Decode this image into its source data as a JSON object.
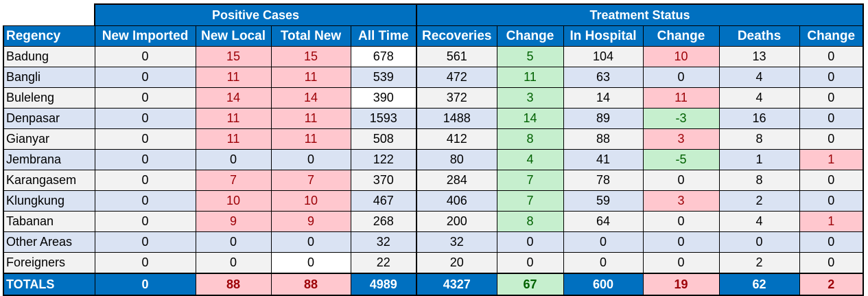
{
  "groups": {
    "positive": "Positive Cases",
    "treatment": "Treatment Status"
  },
  "columns": [
    "Regency",
    "New Imported",
    "New Local",
    "Total New",
    "All Time",
    "Recoveries",
    "Change",
    "In Hospital",
    "Change",
    "Deaths",
    "Change"
  ],
  "rows": [
    [
      "Badung",
      "0",
      "15",
      "15",
      "678",
      "561",
      "5",
      "104",
      "10",
      "13",
      "0"
    ],
    [
      "Bangli",
      "0",
      "11",
      "11",
      "539",
      "472",
      "11",
      "63",
      "0",
      "4",
      "0"
    ],
    [
      "Buleleng",
      "0",
      "14",
      "14",
      "390",
      "372",
      "3",
      "14",
      "11",
      "4",
      "0"
    ],
    [
      "Denpasar",
      "0",
      "11",
      "11",
      "1593",
      "1488",
      "14",
      "89",
      "-3",
      "16",
      "0"
    ],
    [
      "Gianyar",
      "0",
      "11",
      "11",
      "508",
      "412",
      "8",
      "88",
      "3",
      "8",
      "0"
    ],
    [
      "Jembrana",
      "0",
      "0",
      "0",
      "122",
      "80",
      "4",
      "41",
      "-5",
      "1",
      "1"
    ],
    [
      "Karangasem",
      "0",
      "7",
      "7",
      "370",
      "284",
      "7",
      "78",
      "0",
      "8",
      "0"
    ],
    [
      "Klungkung",
      "0",
      "10",
      "10",
      "467",
      "406",
      "7",
      "59",
      "3",
      "2",
      "0"
    ],
    [
      "Tabanan",
      "0",
      "9",
      "9",
      "268",
      "200",
      "8",
      "64",
      "0",
      "4",
      "1"
    ],
    [
      "Other Areas",
      "0",
      "0",
      "0",
      "32",
      "32",
      "0",
      "0",
      "0",
      "0",
      "0"
    ],
    [
      "Foreigners",
      "0",
      "0",
      "0",
      "22",
      "20",
      "0",
      "0",
      "0",
      "2",
      "0"
    ]
  ],
  "totals": [
    "TOTALS",
    "0",
    "88",
    "88",
    "4989",
    "4327",
    "67",
    "600",
    "19",
    "62",
    "2"
  ],
  "colors": {
    "header_blue": "#0070c0",
    "positive_fill": "#ffc7ce",
    "positive_text": "#9c0006",
    "negative_fill": "#c6efce",
    "negative_text": "#006100",
    "row_odd": "#f2f2f2",
    "row_even": "#dae3f3"
  }
}
